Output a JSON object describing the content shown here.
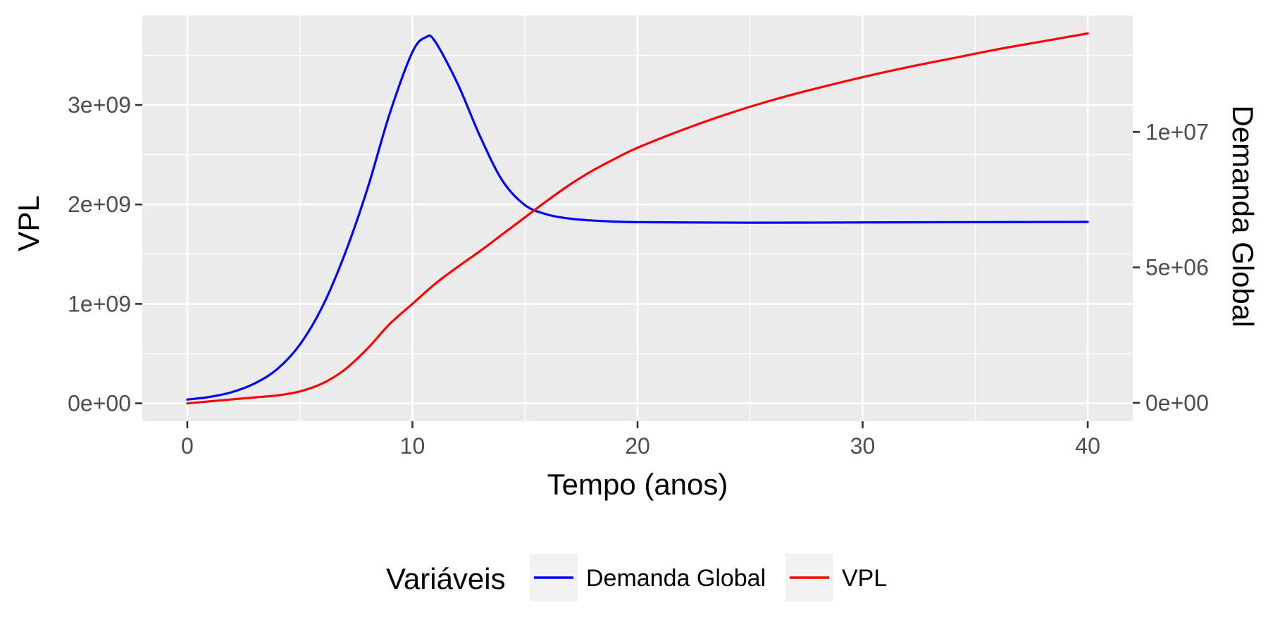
{
  "chart_data": {
    "type": "line",
    "title": "",
    "xlabel": "Tempo (anos)",
    "ylabel": "VPL",
    "y2label": "Demanda Global",
    "xlim": [
      -2,
      42
    ],
    "ylim": [
      -180000000,
      3900000000
    ],
    "y2lim": [
      -680000,
      14300000
    ],
    "x_ticks": [
      0,
      10,
      20,
      30,
      40
    ],
    "x_tick_labels": [
      "0",
      "10",
      "20",
      "30",
      "40"
    ],
    "y_ticks": [
      0,
      1000000000,
      2000000000,
      3000000000
    ],
    "y_tick_labels": [
      "0e+00",
      "1e+09",
      "2e+09",
      "3e+09"
    ],
    "y2_ticks": [
      0,
      5000000,
      10000000
    ],
    "y2_tick_labels": [
      "0e+00",
      "5e+06",
      "1e+07"
    ],
    "grid": true,
    "background": "#ebebeb",
    "legend": {
      "title": "Variáveis",
      "position": "bottom",
      "entries": [
        "Demanda Global",
        "VPL"
      ]
    },
    "series": [
      {
        "name": "Demanda Global",
        "axis": "right",
        "color": "#0000ff",
        "x": [
          0,
          1,
          2,
          3,
          4,
          5,
          6,
          7,
          8,
          9,
          10,
          10.6,
          11,
          12,
          13,
          14,
          15,
          16,
          17,
          18,
          19,
          20,
          22,
          25,
          30,
          35,
          40
        ],
        "values": [
          120000,
          220000,
          400000,
          720000,
          1250000,
          2150000,
          3550000,
          5500000,
          7900000,
          10700000,
          12950000,
          13500000,
          13350000,
          11800000,
          9850000,
          8200000,
          7300000,
          6950000,
          6800000,
          6730000,
          6690000,
          6670000,
          6660000,
          6650000,
          6660000,
          6670000,
          6680000
        ]
      },
      {
        "name": "VPL",
        "axis": "left",
        "color": "#ff0000",
        "x": [
          0,
          1,
          2,
          3,
          4,
          5,
          6,
          7,
          8,
          9,
          10,
          11,
          12,
          13,
          14,
          15,
          16,
          17,
          18,
          19,
          20,
          22,
          24,
          26,
          28,
          30,
          32,
          34,
          36,
          38,
          40
        ],
        "values": [
          0,
          20000000,
          40000000,
          60000000,
          80000000,
          120000000,
          200000000,
          340000000,
          550000000,
          800000000,
          1000000000,
          1200000000,
          1370000000,
          1530000000,
          1700000000,
          1870000000,
          2040000000,
          2200000000,
          2340000000,
          2460000000,
          2570000000,
          2750000000,
          2910000000,
          3050000000,
          3170000000,
          3280000000,
          3380000000,
          3470000000,
          3560000000,
          3640000000,
          3720000000
        ]
      }
    ]
  }
}
